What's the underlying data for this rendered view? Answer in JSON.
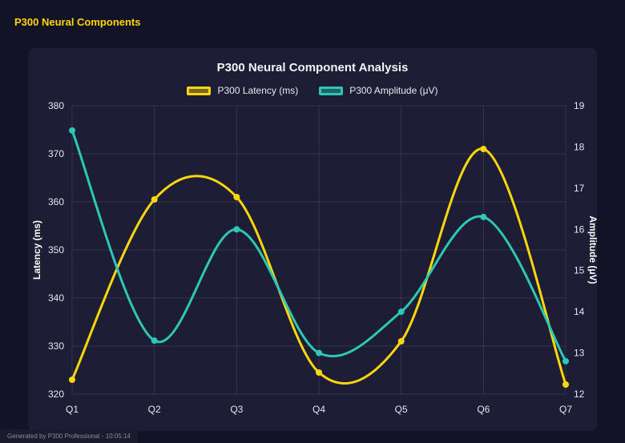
{
  "page": {
    "header_title": "P300 Neural Components",
    "footer_badge": "Generated by P300 Professional - 10:05:14",
    "colors": {
      "background": "#131327",
      "panel": "#1d1d35",
      "accent": "#ffd60a",
      "grid": "rgba(255,255,255,0.10)",
      "tick_text": "#e6e6ee",
      "axis_title_text": "#ffffff"
    }
  },
  "chart_data": {
    "type": "line",
    "title": "P300 Neural Component Analysis",
    "categories": [
      "Q1",
      "Q2",
      "Q3",
      "Q4",
      "Q5",
      "Q6",
      "Q7"
    ],
    "series": [
      {
        "name": "P300 Latency (ms)",
        "axis": "left",
        "color": "#ffd60a",
        "values": [
          323,
          360.5,
          361,
          324.5,
          331,
          371,
          322
        ]
      },
      {
        "name": "P300 Amplitude (μV)",
        "axis": "right",
        "color": "#2cc7b6",
        "values": [
          18.4,
          13.3,
          16.0,
          13.0,
          14.0,
          16.3,
          12.8
        ]
      }
    ],
    "left_axis": {
      "label": "Latency (ms)",
      "min": 320,
      "max": 380,
      "step": 10
    },
    "right_axis": {
      "label": "Amplitude (μV)",
      "min": 12,
      "max": 19,
      "step": 1
    },
    "legend_position": "top",
    "grid": true,
    "line_style": "smooth-spline with point markers"
  }
}
